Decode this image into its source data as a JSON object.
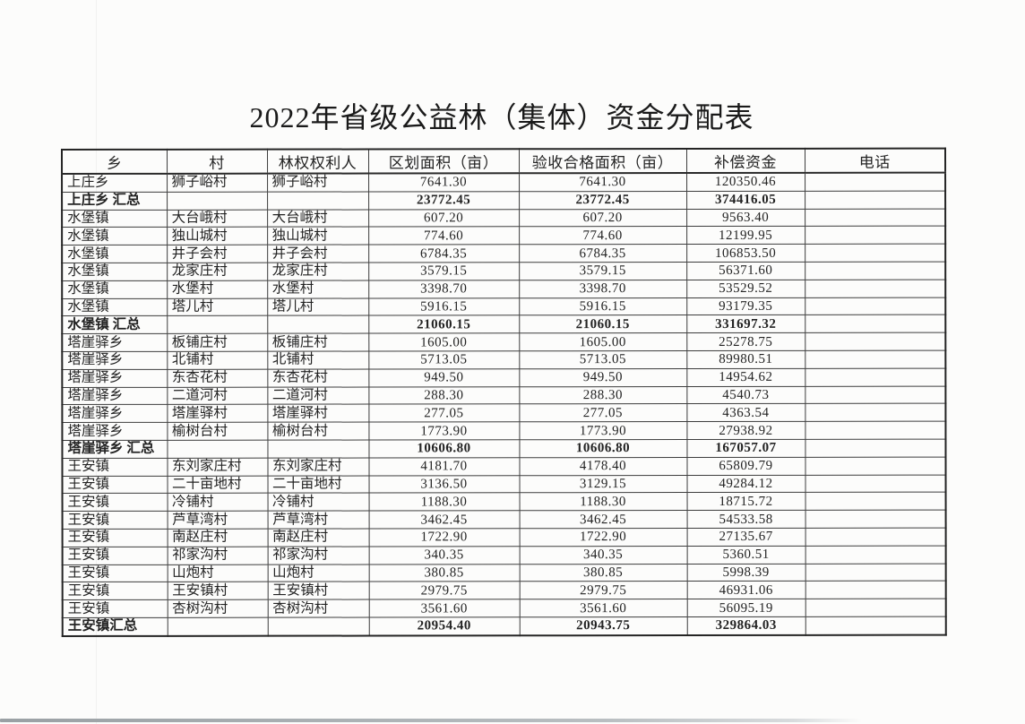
{
  "title": "2022年省级公益林（集体）资金分配表",
  "colors": {
    "paper": "#fcfcfb",
    "ink": "#232323",
    "table_border": "#3d3d3d"
  },
  "table": {
    "columns": [
      "乡",
      "村",
      "林权权利人",
      "区划面积（亩）",
      "验收合格面积（亩）",
      "补偿资金",
      "电话"
    ],
    "column_keys": [
      "township",
      "village",
      "rights-holder",
      "zoned-area",
      "accepted-area",
      "compensation",
      "phone"
    ],
    "rows": [
      {
        "type": "data",
        "cells": [
          "上庄乡",
          "狮子峪村",
          "狮子峪村",
          "7641.30",
          "7641.30",
          "120350.46",
          ""
        ]
      },
      {
        "type": "summary",
        "cells": [
          "上庄乡 汇总",
          "",
          "",
          "23772.45",
          "23772.45",
          "374416.05",
          ""
        ]
      },
      {
        "type": "data",
        "cells": [
          "水堡镇",
          "大台峨村",
          "大台峨村",
          "607.20",
          "607.20",
          "9563.40",
          ""
        ]
      },
      {
        "type": "data",
        "cells": [
          "水堡镇",
          "独山城村",
          "独山城村",
          "774.60",
          "774.60",
          "12199.95",
          ""
        ]
      },
      {
        "type": "data",
        "cells": [
          "水堡镇",
          "井子会村",
          "井子会村",
          "6784.35",
          "6784.35",
          "106853.50",
          ""
        ]
      },
      {
        "type": "data",
        "cells": [
          "水堡镇",
          "龙家庄村",
          "龙家庄村",
          "3579.15",
          "3579.15",
          "56371.60",
          ""
        ]
      },
      {
        "type": "data",
        "cells": [
          "水堡镇",
          "水堡村",
          "水堡村",
          "3398.70",
          "3398.70",
          "53529.52",
          ""
        ]
      },
      {
        "type": "data",
        "cells": [
          "水堡镇",
          "塔儿村",
          "塔儿村",
          "5916.15",
          "5916.15",
          "93179.35",
          ""
        ]
      },
      {
        "type": "summary",
        "cells": [
          "水堡镇 汇总",
          "",
          "",
          "21060.15",
          "21060.15",
          "331697.32",
          ""
        ]
      },
      {
        "type": "data",
        "cells": [
          "塔崖驿乡",
          "板铺庄村",
          "板铺庄村",
          "1605.00",
          "1605.00",
          "25278.75",
          ""
        ]
      },
      {
        "type": "data",
        "cells": [
          "塔崖驿乡",
          "北铺村",
          "北铺村",
          "5713.05",
          "5713.05",
          "89980.51",
          ""
        ]
      },
      {
        "type": "data",
        "cells": [
          "塔崖驿乡",
          "东杏花村",
          "东杏花村",
          "949.50",
          "949.50",
          "14954.62",
          ""
        ]
      },
      {
        "type": "data",
        "cells": [
          "塔崖驿乡",
          "二道河村",
          "二道河村",
          "288.30",
          "288.30",
          "4540.73",
          ""
        ]
      },
      {
        "type": "data",
        "cells": [
          "塔崖驿乡",
          "塔崖驿村",
          "塔崖驿村",
          "277.05",
          "277.05",
          "4363.54",
          ""
        ]
      },
      {
        "type": "data",
        "cells": [
          "塔崖驿乡",
          "榆树台村",
          "榆树台村",
          "1773.90",
          "1773.90",
          "27938.92",
          ""
        ]
      },
      {
        "type": "summary",
        "cells": [
          "塔崖驿乡 汇总",
          "",
          "",
          "10606.80",
          "10606.80",
          "167057.07",
          ""
        ]
      },
      {
        "type": "data",
        "cells": [
          "王安镇",
          "东刘家庄村",
          "东刘家庄村",
          "4181.70",
          "4178.40",
          "65809.79",
          ""
        ]
      },
      {
        "type": "data",
        "cells": [
          "王安镇",
          "二十亩地村",
          "二十亩地村",
          "3136.50",
          "3129.15",
          "49284.12",
          ""
        ]
      },
      {
        "type": "data",
        "cells": [
          "王安镇",
          "冷铺村",
          "冷铺村",
          "1188.30",
          "1188.30",
          "18715.72",
          ""
        ]
      },
      {
        "type": "data",
        "cells": [
          "王安镇",
          "芦草湾村",
          "芦草湾村",
          "3462.45",
          "3462.45",
          "54533.58",
          ""
        ]
      },
      {
        "type": "data",
        "cells": [
          "王安镇",
          "南赵庄村",
          "南赵庄村",
          "1722.90",
          "1722.90",
          "27135.67",
          ""
        ]
      },
      {
        "type": "data",
        "cells": [
          "王安镇",
          "祁家沟村",
          "祁家沟村",
          "340.35",
          "340.35",
          "5360.51",
          ""
        ]
      },
      {
        "type": "data",
        "cells": [
          "王安镇",
          "山炮村",
          "山炮村",
          "380.85",
          "380.85",
          "5998.39",
          ""
        ]
      },
      {
        "type": "data",
        "cells": [
          "王安镇",
          "王安镇村",
          "王安镇村",
          "2979.75",
          "2979.75",
          "46931.06",
          ""
        ]
      },
      {
        "type": "data",
        "cells": [
          "王安镇",
          "杏树沟村",
          "杏树沟村",
          "3561.60",
          "3561.60",
          "56095.19",
          ""
        ]
      },
      {
        "type": "summary",
        "cells": [
          "王安镇汇总",
          "",
          "",
          "20954.40",
          "20943.75",
          "329864.03",
          ""
        ]
      }
    ]
  }
}
